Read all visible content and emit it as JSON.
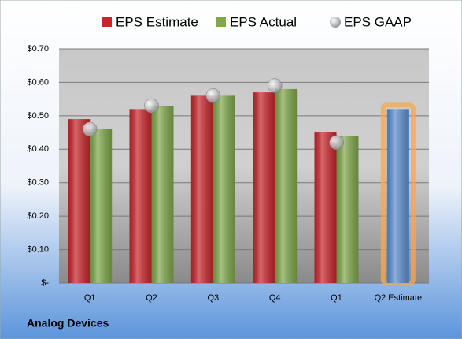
{
  "chart_data": {
    "type": "bar",
    "company": "Analog Devices",
    "categories": [
      "Q1",
      "Q2",
      "Q3",
      "Q4",
      "Q1",
      "Q2 Estimate"
    ],
    "series": [
      {
        "name": "EPS Estimate",
        "color": "#c8262b",
        "colors": [
          "#c8262b",
          "#c8262b",
          "#c8262b",
          "#c8262b",
          "#c8262b",
          "#5b8fd0"
        ],
        "values": [
          0.49,
          0.52,
          0.56,
          0.57,
          0.45,
          0.52
        ]
      },
      {
        "name": "EPS Actual",
        "color": "#7fa84a",
        "values": [
          0.46,
          0.53,
          0.56,
          0.58,
          0.44,
          null
        ]
      },
      {
        "name": "EPS GAAP",
        "color": "#a9acb0",
        "marker": "circle",
        "values": [
          0.46,
          0.53,
          0.56,
          0.59,
          0.42,
          null
        ]
      }
    ],
    "ylim": [
      0,
      0.7
    ],
    "yticks": [
      {
        "value": 0,
        "label": "$-"
      },
      {
        "value": 0.1,
        "label": "$0.10"
      },
      {
        "value": 0.2,
        "label": "$0.20"
      },
      {
        "value": 0.3,
        "label": "$0.30"
      },
      {
        "value": 0.4,
        "label": "$0.40"
      },
      {
        "value": 0.5,
        "label": "$0.50"
      },
      {
        "value": 0.6,
        "label": "$0.60"
      },
      {
        "value": 0.7,
        "label": "$0.70"
      }
    ],
    "grid": true
  }
}
